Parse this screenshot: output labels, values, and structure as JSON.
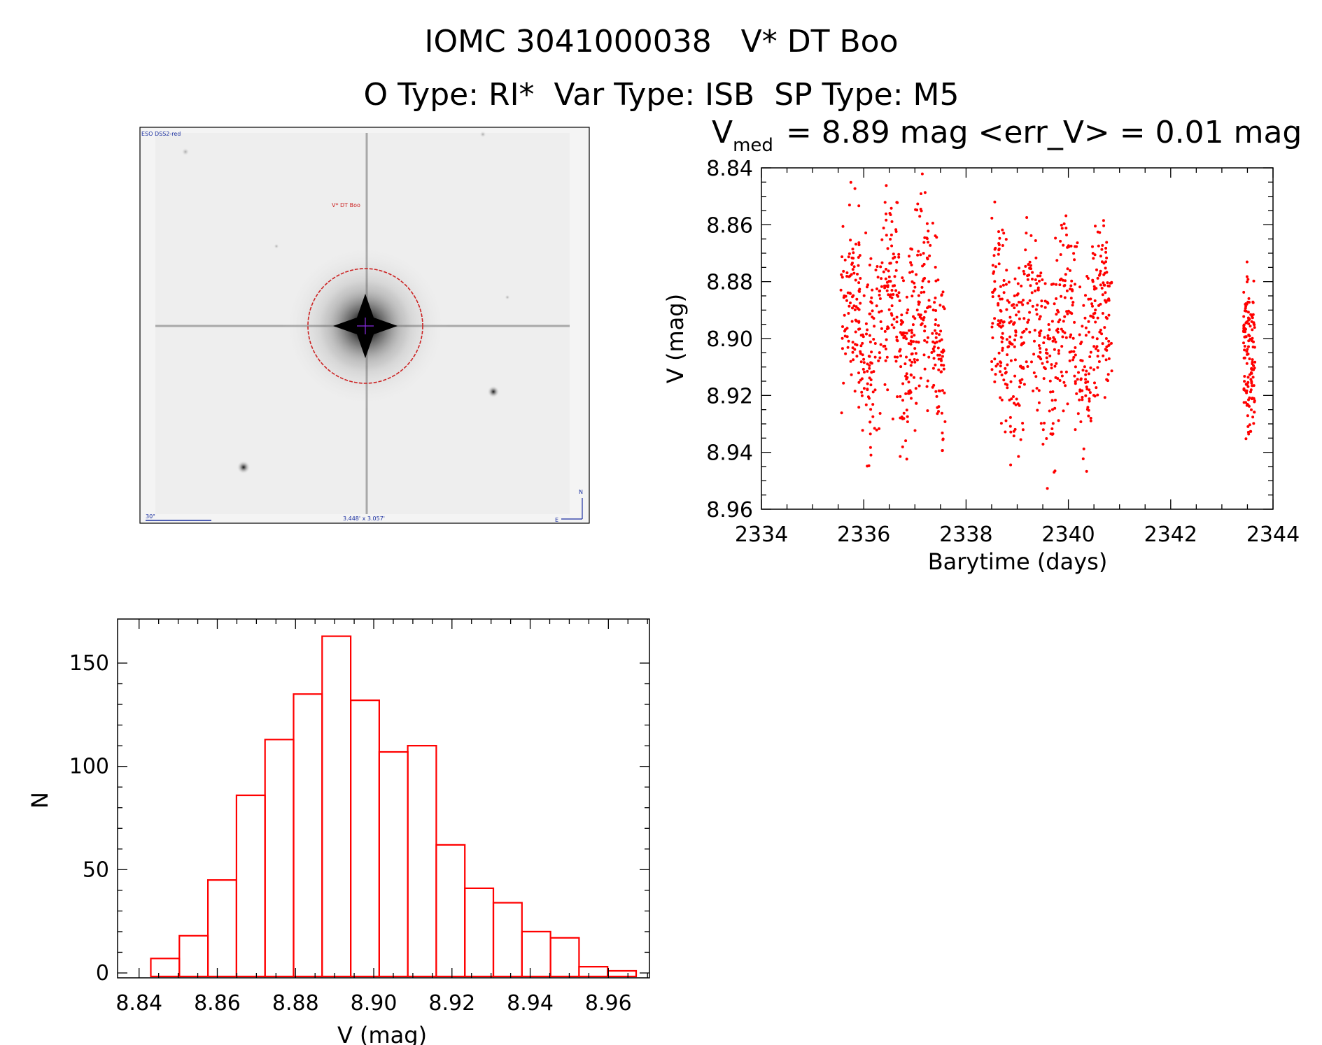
{
  "titles": {
    "line1": "IOMC 3041000038   V* DT Boo",
    "line2": "O Type: RI*  Var Type: ISB  SP Type: M5"
  },
  "image_panel": {
    "survey_label": "ESO DSS2-red",
    "target_label": "V* DT Boo",
    "scale_label": "30\"",
    "size_label": "3.448' x 3.057'",
    "north_label": "N",
    "east_label": "E",
    "marker_color": "#cc2222",
    "annotation_color": "#1a2fa0"
  },
  "chart_data": [
    {
      "type": "scatter",
      "title_prefix": "V",
      "title_subscript": "med",
      "title_rest": "= 8.89 mag <err_V> = 0.01 mag",
      "xlabel": "Barytime (days)",
      "ylabel": "V (mag)",
      "xlim": [
        2334,
        2344
      ],
      "ylim": [
        8.96,
        8.84
      ],
      "y_inverted": true,
      "xticks": [
        "2334",
        "2336",
        "2338",
        "2340",
        "2342",
        "2344"
      ],
      "yticks": [
        "8.84",
        "8.86",
        "8.88",
        "8.90",
        "8.92",
        "8.94",
        "8.96"
      ],
      "color": "#ff0000",
      "grid": false,
      "segments": [
        {
          "x_start": 2335.55,
          "x_end": 2337.6,
          "y_center": 8.895,
          "y_spread": 0.02,
          "points": 520
        },
        {
          "x_start": 2338.5,
          "x_end": 2340.85,
          "y_center": 8.897,
          "y_spread": 0.02,
          "points": 560
        },
        {
          "x_start": 2343.42,
          "x_end": 2343.65,
          "y_center": 8.913,
          "y_spread": 0.018,
          "points": 130
        }
      ]
    },
    {
      "type": "bar",
      "xlabel": "V (mag)",
      "ylabel": "N",
      "xlim": [
        8.84,
        8.965
      ],
      "ylim": [
        0,
        170
      ],
      "xticks": [
        "8.84",
        "8.86",
        "8.88",
        "8.90",
        "8.92",
        "8.94",
        "8.96"
      ],
      "yticks": [
        "0",
        "50",
        "100",
        "150"
      ],
      "color": "#ff0000",
      "grid": false,
      "bin_start": 8.843,
      "bin_width": 0.0073,
      "values": [
        7,
        18,
        45,
        86,
        113,
        135,
        163,
        132,
        107,
        110,
        62,
        41,
        34,
        20,
        17,
        3,
        1
      ]
    }
  ]
}
